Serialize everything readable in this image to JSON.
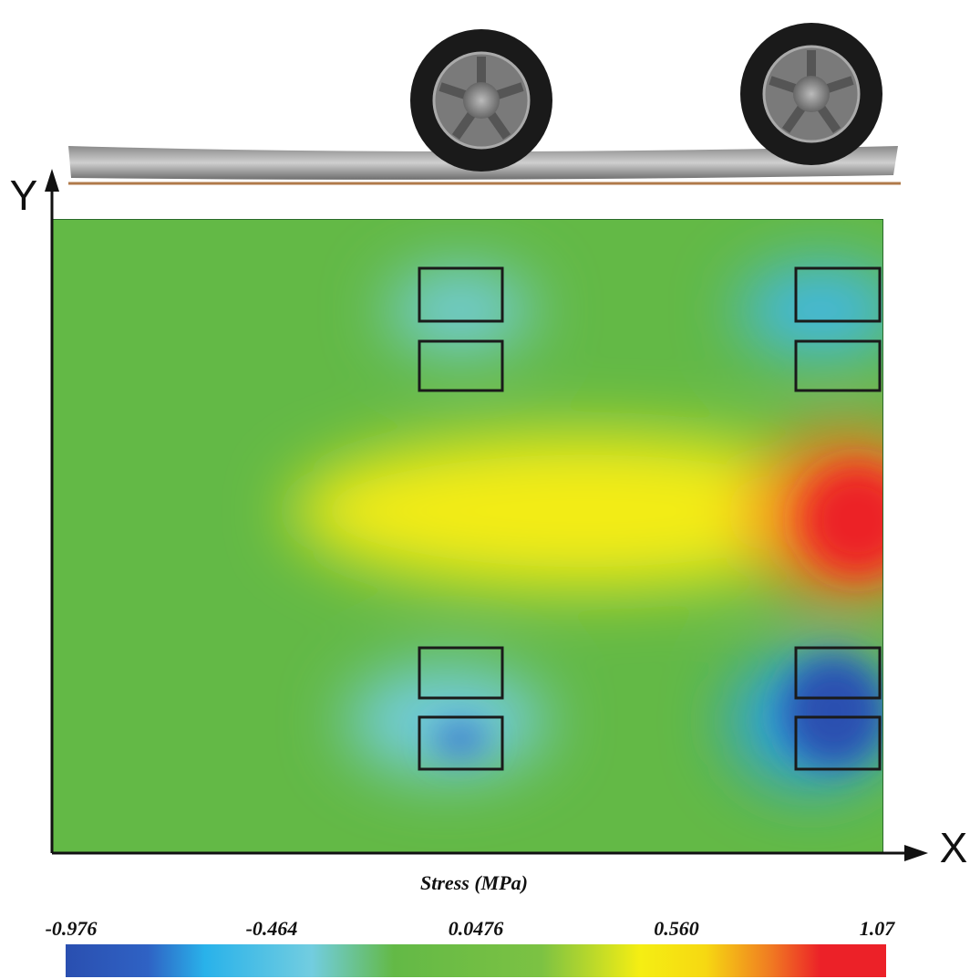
{
  "axes": {
    "x_label": "X",
    "y_label": "Y"
  },
  "colorbar": {
    "title": "Stress (MPa)",
    "tick_labels": [
      "-0.976",
      "-0.464",
      "0.0476",
      "0.560",
      "1.07"
    ]
  }
}
